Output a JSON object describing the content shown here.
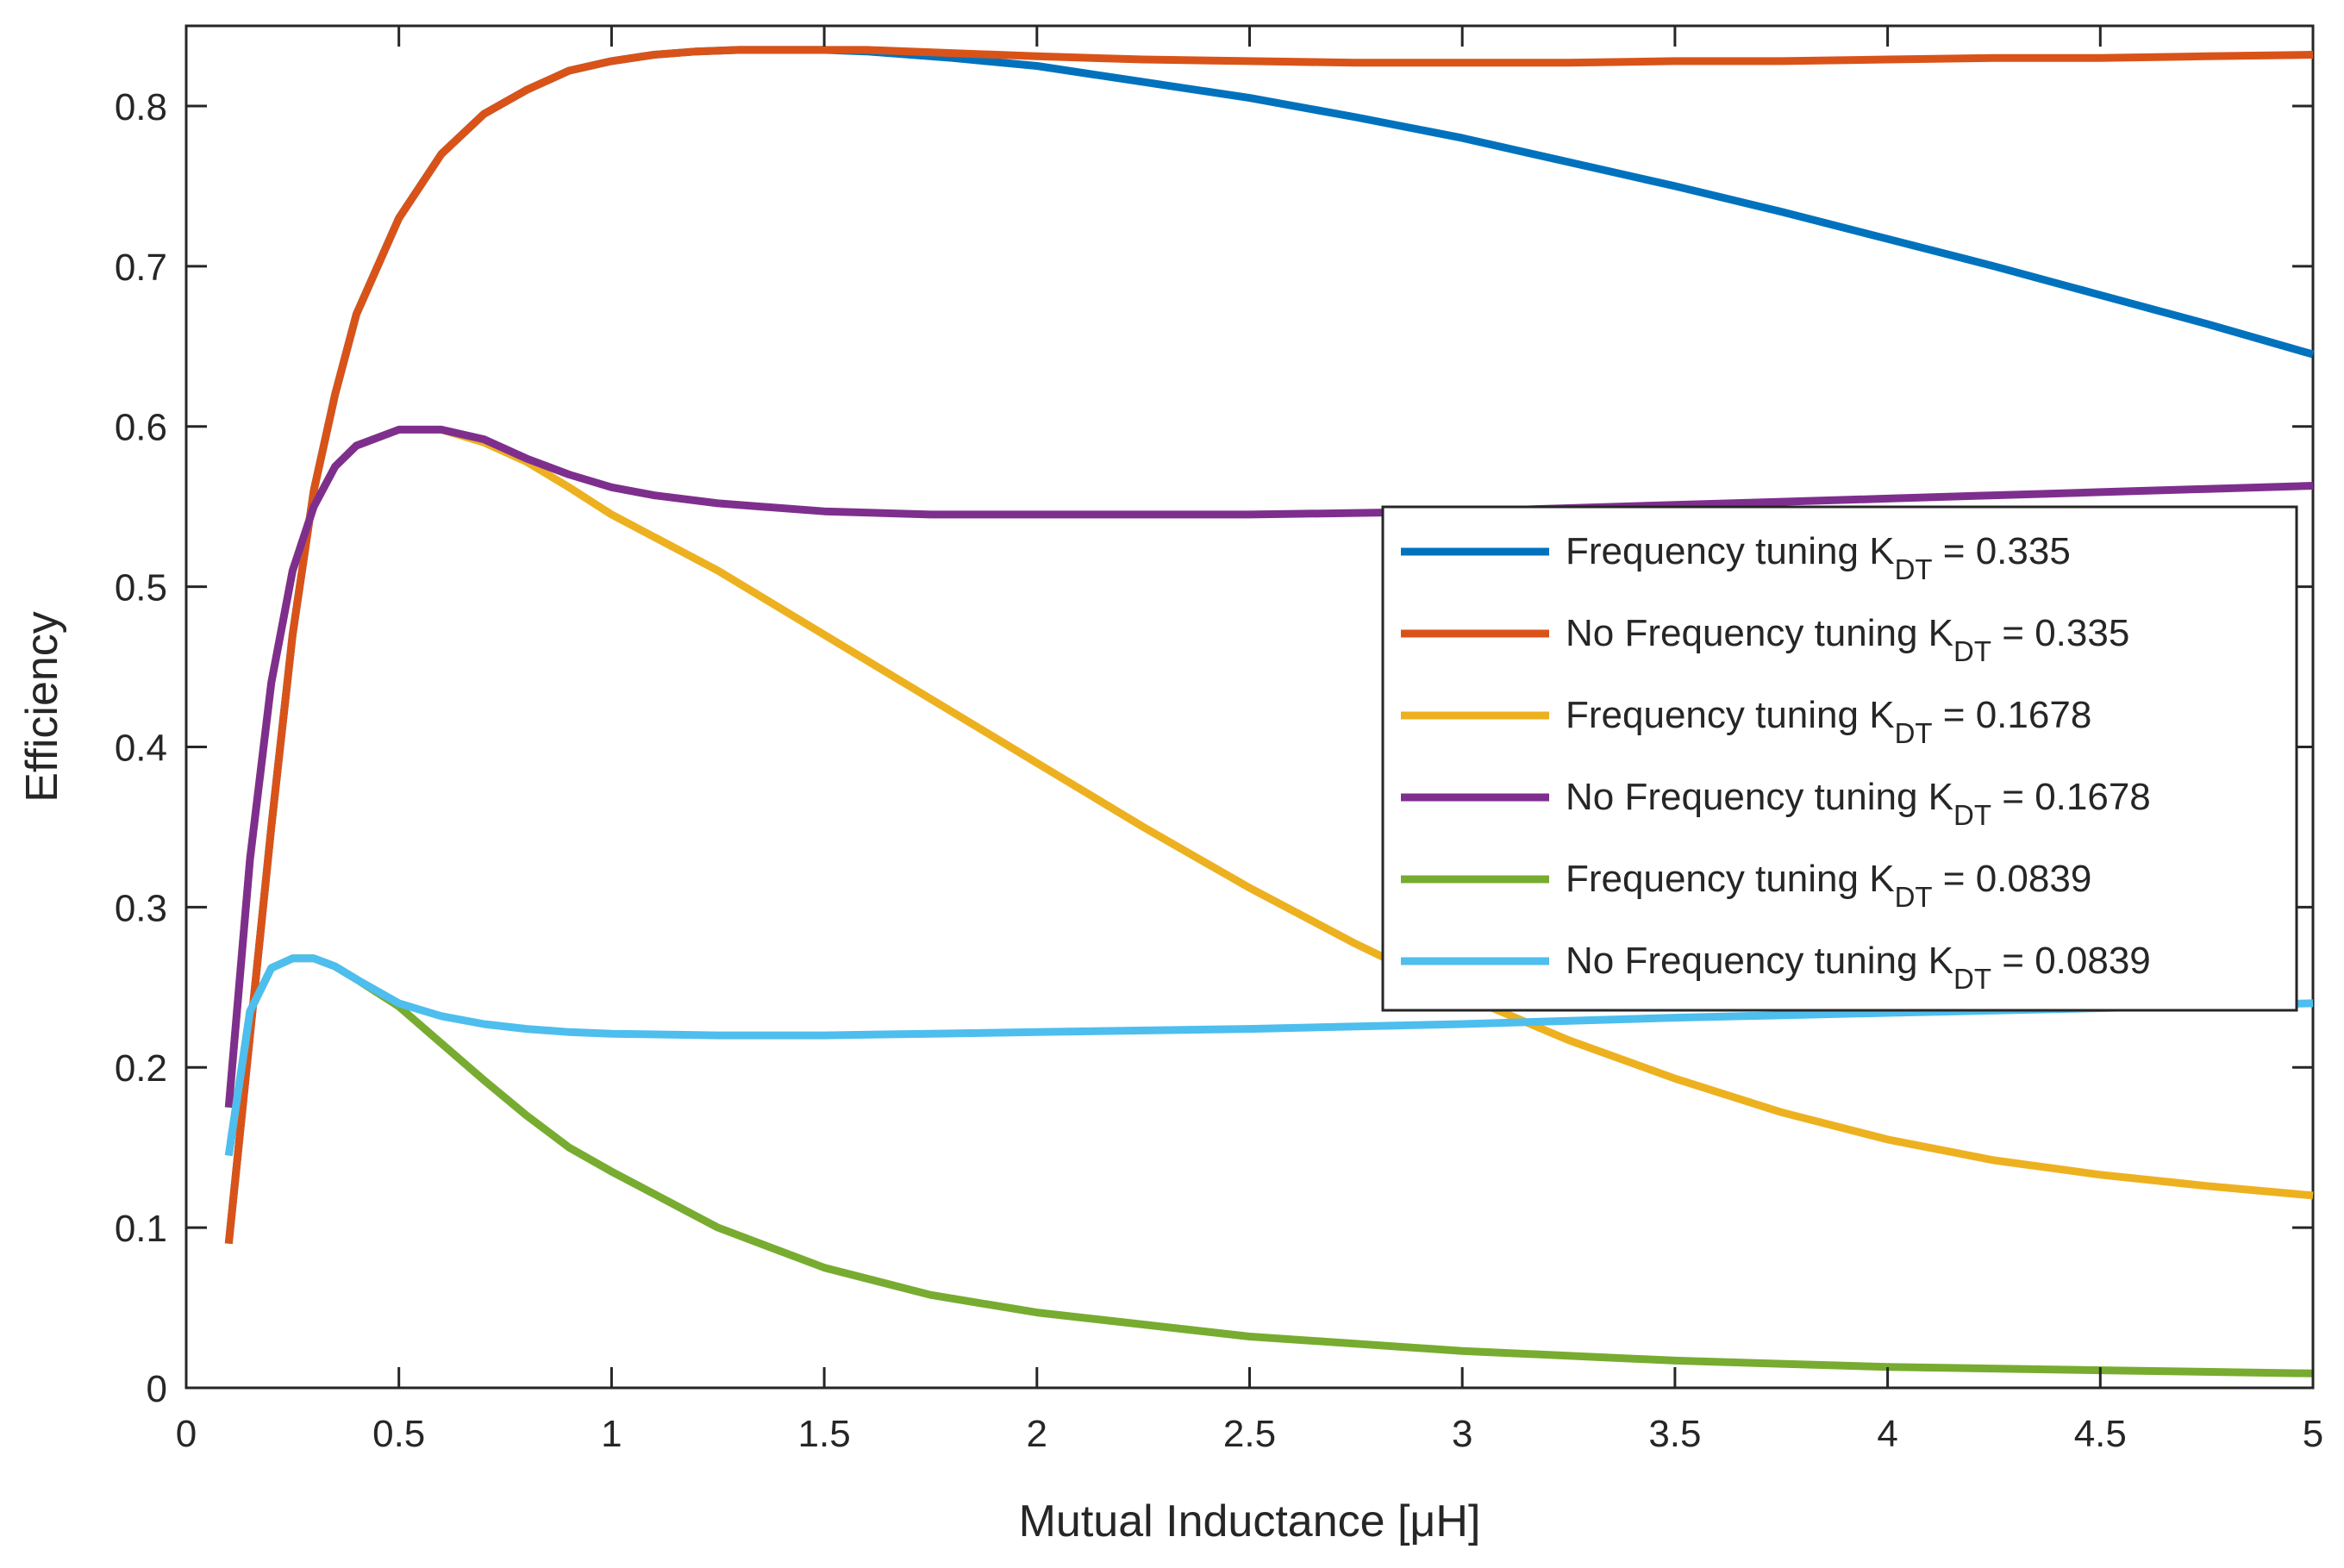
{
  "chart_data": {
    "type": "line",
    "title": "",
    "xlabel": "Mutual Inductance [μH]",
    "ylabel": "Efficiency",
    "xlim": [
      0,
      5
    ],
    "ylim": [
      0,
      0.85
    ],
    "xticks": [
      0,
      0.5,
      1,
      1.5,
      2,
      2.5,
      3,
      3.5,
      4,
      4.5,
      5
    ],
    "xtick_labels": [
      "0",
      "0.5",
      "1",
      "1.5",
      "2",
      "2.5",
      "3",
      "3.5",
      "4",
      "4.5",
      "5"
    ],
    "yticks": [
      0,
      0.1,
      0.2,
      0.3,
      0.4,
      0.5,
      0.6,
      0.7,
      0.8
    ],
    "ytick_labels": [
      "0",
      "0.1",
      "0.2",
      "0.3",
      "0.4",
      "0.5",
      "0.6",
      "0.7",
      "0.8"
    ],
    "grid": false,
    "legend_position": "right",
    "series": [
      {
        "name": "Frequency tuning K_DT = 0.335",
        "label_main": "Frequency tuning K",
        "label_sub": "DT",
        "label_tail": " = 0.335",
        "color": "#0072BD",
        "x": [
          0.1,
          0.15,
          0.2,
          0.25,
          0.3,
          0.35,
          0.4,
          0.5,
          0.6,
          0.7,
          0.8,
          0.9,
          1.0,
          1.1,
          1.2,
          1.3,
          1.4,
          1.5,
          1.6,
          1.8,
          2.0,
          2.25,
          2.5,
          2.75,
          3.0,
          3.25,
          3.5,
          3.75,
          4.0,
          4.25,
          4.5,
          4.75,
          5.0
        ],
        "y": [
          0.09,
          0.22,
          0.35,
          0.47,
          0.56,
          0.62,
          0.67,
          0.73,
          0.77,
          0.795,
          0.81,
          0.822,
          0.828,
          0.832,
          0.834,
          0.835,
          0.835,
          0.835,
          0.834,
          0.83,
          0.825,
          0.815,
          0.805,
          0.793,
          0.78,
          0.765,
          0.75,
          0.734,
          0.717,
          0.7,
          0.682,
          0.664,
          0.645
        ]
      },
      {
        "name": "No Frequency tuning K_DT = 0.335",
        "label_main": "No Frequency tuning K",
        "label_sub": "DT",
        "label_tail": " = 0.335",
        "color": "#D95319",
        "x": [
          0.1,
          0.15,
          0.2,
          0.25,
          0.3,
          0.35,
          0.4,
          0.5,
          0.6,
          0.7,
          0.8,
          0.9,
          1.0,
          1.1,
          1.2,
          1.3,
          1.4,
          1.5,
          1.6,
          1.8,
          2.0,
          2.25,
          2.5,
          2.75,
          3.0,
          3.25,
          3.5,
          3.75,
          4.0,
          4.25,
          4.5,
          4.75,
          5.0
        ],
        "y": [
          0.09,
          0.22,
          0.35,
          0.47,
          0.56,
          0.62,
          0.67,
          0.73,
          0.77,
          0.795,
          0.81,
          0.822,
          0.828,
          0.832,
          0.834,
          0.835,
          0.835,
          0.835,
          0.835,
          0.833,
          0.831,
          0.829,
          0.828,
          0.827,
          0.827,
          0.827,
          0.828,
          0.828,
          0.829,
          0.83,
          0.83,
          0.831,
          0.832
        ]
      },
      {
        "name": "Frequency tuning K_DT = 0.1678",
        "label_main": "Frequency tuning K",
        "label_sub": "DT",
        "label_tail": " = 0.1678",
        "color": "#EDB120",
        "x": [
          0.1,
          0.15,
          0.2,
          0.25,
          0.3,
          0.35,
          0.4,
          0.5,
          0.6,
          0.7,
          0.8,
          0.9,
          1.0,
          1.25,
          1.5,
          1.75,
          2.0,
          2.25,
          2.5,
          2.75,
          3.0,
          3.25,
          3.5,
          3.75,
          4.0,
          4.25,
          4.5,
          4.75,
          5.0
        ],
        "y": [
          0.175,
          0.33,
          0.44,
          0.51,
          0.55,
          0.575,
          0.588,
          0.598,
          0.598,
          0.59,
          0.578,
          0.562,
          0.545,
          0.51,
          0.47,
          0.43,
          0.39,
          0.35,
          0.312,
          0.277,
          0.245,
          0.217,
          0.193,
          0.172,
          0.155,
          0.142,
          0.133,
          0.126,
          0.12
        ]
      },
      {
        "name": "No Frequency tuning K_DT = 0.1678",
        "label_main": "No Frequency tuning K",
        "label_sub": "DT",
        "label_tail": " = 0.1678",
        "color": "#7E2F8E",
        "x": [
          0.1,
          0.15,
          0.2,
          0.25,
          0.3,
          0.35,
          0.4,
          0.5,
          0.6,
          0.7,
          0.8,
          0.9,
          1.0,
          1.1,
          1.25,
          1.5,
          1.75,
          2.0,
          2.25,
          2.5,
          2.75,
          3.0,
          3.25,
          3.5,
          3.75,
          4.0,
          4.25,
          4.5,
          4.75,
          5.0
        ],
        "y": [
          0.175,
          0.33,
          0.44,
          0.51,
          0.55,
          0.575,
          0.588,
          0.598,
          0.598,
          0.592,
          0.58,
          0.57,
          0.562,
          0.557,
          0.552,
          0.547,
          0.545,
          0.545,
          0.545,
          0.545,
          0.546,
          0.547,
          0.549,
          0.551,
          0.553,
          0.555,
          0.557,
          0.559,
          0.561,
          0.563
        ]
      },
      {
        "name": "Frequency tuning K_DT = 0.0839",
        "label_main": "Frequency tuning K",
        "label_sub": "DT",
        "label_tail": " = 0.0839",
        "color": "#77AC30",
        "x": [
          0.1,
          0.15,
          0.2,
          0.25,
          0.3,
          0.35,
          0.4,
          0.5,
          0.6,
          0.7,
          0.8,
          0.9,
          1.0,
          1.25,
          1.5,
          1.75,
          2.0,
          2.5,
          3.0,
          3.5,
          4.0,
          4.5,
          5.0
        ],
        "y": [
          0.145,
          0.235,
          0.262,
          0.268,
          0.268,
          0.263,
          0.255,
          0.238,
          0.215,
          0.192,
          0.17,
          0.15,
          0.135,
          0.1,
          0.075,
          0.058,
          0.047,
          0.032,
          0.023,
          0.017,
          0.013,
          0.011,
          0.009
        ]
      },
      {
        "name": "No Frequency tuning K_DT = 0.0839",
        "label_main": "No Frequency tuning K",
        "label_sub": "DT",
        "label_tail": " = 0.0839",
        "color": "#4DBEEE",
        "x": [
          0.1,
          0.15,
          0.2,
          0.25,
          0.3,
          0.35,
          0.4,
          0.5,
          0.6,
          0.7,
          0.8,
          0.9,
          1.0,
          1.25,
          1.5,
          1.75,
          2.0,
          2.5,
          3.0,
          3.5,
          4.0,
          4.5,
          5.0
        ],
        "y": [
          0.145,
          0.235,
          0.262,
          0.268,
          0.268,
          0.263,
          0.255,
          0.24,
          0.232,
          0.227,
          0.224,
          0.222,
          0.221,
          0.22,
          0.22,
          0.221,
          0.222,
          0.224,
          0.227,
          0.231,
          0.234,
          0.237,
          0.24
        ]
      }
    ]
  }
}
